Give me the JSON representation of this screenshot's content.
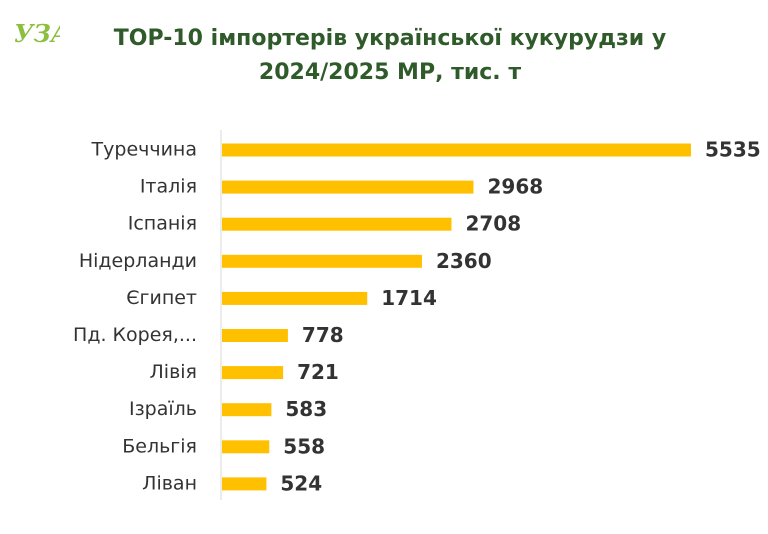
{
  "logo": {
    "text": "УЗА",
    "color": "#8cbe3f"
  },
  "header": {
    "title_line1": "TOP-10 імпортерів української кукурудзи у",
    "title_line2": "2024/2025 МР, тис. т"
  },
  "colors": {
    "bar": "#ffc000",
    "title": "#2f5a2a",
    "axis": "#d9d9d9",
    "text": "#333333"
  },
  "chart_data": {
    "type": "bar",
    "orientation": "horizontal",
    "title": "TOP-10 імпортерів української кукурудзи у 2024/2025 МР, тис. т",
    "categories": [
      "Туреччина",
      "Італія",
      "Іспанія",
      "Нідерланди",
      "Єгипет",
      "Пд. Корея,...",
      "Лівія",
      "Ізраїль",
      "Бельгія",
      "Ліван"
    ],
    "values": [
      5535,
      2968,
      2708,
      2360,
      1714,
      778,
      721,
      583,
      558,
      524
    ],
    "xlim": [
      0,
      5535
    ],
    "grid": false,
    "legend": "none",
    "data_labels": true
  }
}
